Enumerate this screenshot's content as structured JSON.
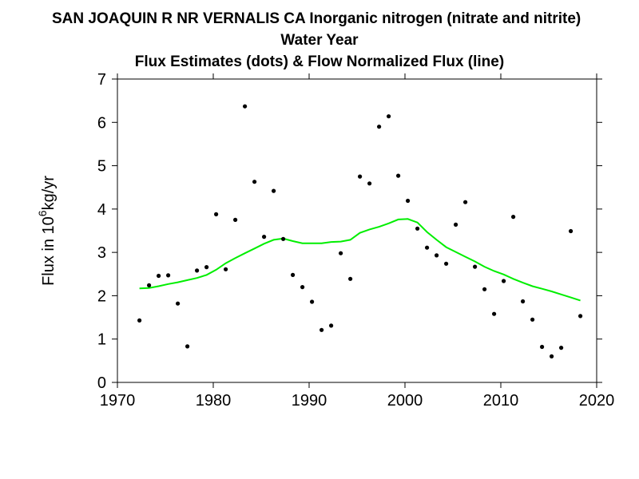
{
  "chart_data": {
    "type": "scatter",
    "title": "SAN JOAQUIN R NR VERNALIS CA   Inorganic nitrogen (nitrate and nitrite)",
    "subtitle": "Water Year",
    "subtitle2": "Flux Estimates (dots) & Flow Normalized Flux (line)",
    "ylabel": "Flux in 10^6 kg/yr",
    "ylabel_parts": {
      "pre": "Flux in 10",
      "sup": "6",
      "post": "kg/yr"
    },
    "xlim": [
      1970,
      2020
    ],
    "ylim": [
      0,
      7
    ],
    "xticks": [
      1970,
      1980,
      1990,
      2000,
      2010,
      2020
    ],
    "yticks": [
      0,
      1,
      2,
      3,
      4,
      5,
      6,
      7
    ],
    "grid": false,
    "colors": {
      "points": "#000000",
      "line": "#00ee00",
      "axes": "#000000"
    },
    "series": [
      {
        "name": "Flux Estimates",
        "kind": "points",
        "x": [
          1972.3,
          1973.3,
          1974.3,
          1975.3,
          1976.3,
          1977.3,
          1978.3,
          1979.3,
          1980.3,
          1981.3,
          1982.3,
          1983.3,
          1984.3,
          1985.3,
          1986.3,
          1987.3,
          1988.3,
          1989.3,
          1990.3,
          1991.3,
          1992.3,
          1993.3,
          1994.3,
          1995.3,
          1996.3,
          1997.3,
          1998.3,
          1999.3,
          2000.3,
          2001.3,
          2002.3,
          2003.3,
          2004.3,
          2005.3,
          2006.3,
          2007.3,
          2008.3,
          2009.3,
          2010.3,
          2011.3,
          2012.3,
          2013.3,
          2014.3,
          2015.3,
          2016.3,
          2017.3,
          2018.3
        ],
        "y": [
          1.43,
          2.24,
          2.46,
          2.47,
          1.82,
          0.83,
          2.58,
          2.66,
          3.88,
          2.61,
          3.75,
          6.37,
          4.63,
          3.36,
          4.42,
          3.31,
          2.48,
          2.2,
          1.86,
          1.21,
          1.31,
          2.98,
          2.39,
          4.75,
          4.59,
          5.9,
          6.14,
          4.77,
          4.19,
          3.55,
          3.11,
          2.93,
          2.74,
          3.64,
          4.16,
          2.67,
          2.15,
          1.58,
          2.34,
          3.82,
          1.87,
          1.45,
          0.82,
          0.6,
          0.8,
          3.49,
          1.53
        ]
      },
      {
        "name": "Flow Normalized Flux",
        "kind": "line",
        "x": [
          1972.3,
          1973.3,
          1974.3,
          1975.3,
          1976.3,
          1977.3,
          1978.3,
          1979.3,
          1980.3,
          1981.3,
          1982.3,
          1983.3,
          1984.3,
          1985.3,
          1986.3,
          1987.3,
          1988.3,
          1989.3,
          1990.3,
          1991.3,
          1992.3,
          1993.3,
          1994.3,
          1995.3,
          1996.3,
          1997.3,
          1998.3,
          1999.3,
          2000.3,
          2001.3,
          2002.3,
          2003.3,
          2004.3,
          2005.3,
          2006.3,
          2007.3,
          2008.3,
          2009.3,
          2010.3,
          2011.3,
          2012.3,
          2013.3,
          2014.3,
          2015.3,
          2016.3,
          2017.3,
          2018.3
        ],
        "y": [
          2.17,
          2.18,
          2.22,
          2.27,
          2.31,
          2.36,
          2.41,
          2.48,
          2.6,
          2.75,
          2.87,
          2.98,
          3.09,
          3.2,
          3.29,
          3.32,
          3.26,
          3.21,
          3.21,
          3.21,
          3.24,
          3.25,
          3.29,
          3.45,
          3.53,
          3.59,
          3.67,
          3.76,
          3.77,
          3.69,
          3.47,
          3.29,
          3.12,
          3.01,
          2.9,
          2.79,
          2.67,
          2.57,
          2.49,
          2.39,
          2.3,
          2.22,
          2.16,
          2.1,
          2.03,
          1.96,
          1.89
        ]
      }
    ]
  }
}
